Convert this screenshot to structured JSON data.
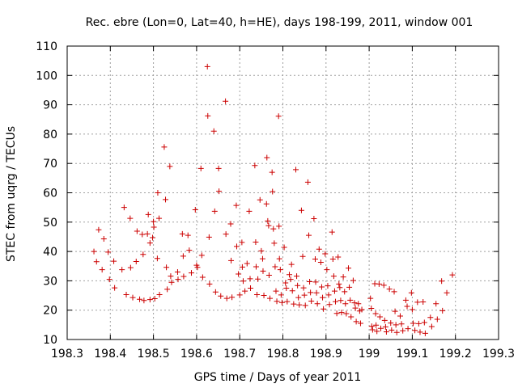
{
  "chart_data": {
    "type": "scatter",
    "title": "Rec. ebre (Lon=0, Lat=40, h=HE), days 198-199, 2011, window 001",
    "xlabel": "GPS time / Days of year 2011",
    "ylabel": "STEC from uqrg / TECUs",
    "xlim": [
      198.3,
      199.3
    ],
    "ylim": [
      10,
      110
    ],
    "xticks": [
      "198.3",
      "198.4",
      "198.5",
      "198.6",
      "198.7",
      "198.8",
      "198.9",
      "199",
      "199.1",
      "199.2",
      "199.3"
    ],
    "yticks": [
      "10",
      "20",
      "30",
      "40",
      "50",
      "60",
      "70",
      "80",
      "90",
      "100",
      "110"
    ],
    "grid": true,
    "marker": "+",
    "color": "#cc0000",
    "points": [
      [
        198.362,
        40
      ],
      [
        198.368,
        36.5
      ],
      [
        198.373,
        47.4
      ],
      [
        198.381,
        33.8
      ],
      [
        198.385,
        44.3
      ],
      [
        198.395,
        39.8
      ],
      [
        198.398,
        30.5
      ],
      [
        198.408,
        36.7
      ],
      [
        198.41,
        27.6
      ],
      [
        198.427,
        33.8
      ],
      [
        198.432,
        55
      ],
      [
        198.437,
        25.3
      ],
      [
        198.446,
        51.3
      ],
      [
        198.447,
        34.5
      ],
      [
        198.452,
        24.3
      ],
      [
        198.46,
        36.6
      ],
      [
        198.462,
        46.9
      ],
      [
        198.468,
        23.7
      ],
      [
        198.474,
        45.8
      ],
      [
        198.476,
        39
      ],
      [
        198.478,
        23.3
      ],
      [
        198.486,
        46
      ],
      [
        198.488,
        52.6
      ],
      [
        198.492,
        42.9
      ],
      [
        198.492,
        23.6
      ],
      [
        198.498,
        44.7
      ],
      [
        198.5,
        50.2
      ],
      [
        198.501,
        48.3
      ],
      [
        198.503,
        23.9
      ],
      [
        198.509,
        37.6
      ],
      [
        198.51,
        60
      ],
      [
        198.513,
        51.3
      ],
      [
        198.514,
        25.3
      ],
      [
        198.525,
        75.6
      ],
      [
        198.528,
        57.7
      ],
      [
        198.53,
        34.6
      ],
      [
        198.532,
        27.1
      ],
      [
        198.538,
        69
      ],
      [
        198.54,
        31.6
      ],
      [
        198.542,
        29.5
      ],
      [
        198.556,
        33
      ],
      [
        198.557,
        30.5
      ],
      [
        198.567,
        46
      ],
      [
        198.569,
        38.4
      ],
      [
        198.57,
        31.5
      ],
      [
        198.58,
        45.5
      ],
      [
        198.583,
        40.4
      ],
      [
        198.588,
        32.7
      ],
      [
        198.597,
        54.2
      ],
      [
        198.6,
        35.3
      ],
      [
        198.602,
        34.6
      ],
      [
        198.61,
        68.3
      ],
      [
        198.612,
        38.7
      ],
      [
        198.614,
        31.2
      ],
      [
        198.625,
        103
      ],
      [
        198.626,
        86.2
      ],
      [
        198.629,
        44.9
      ],
      [
        198.63,
        28.9
      ],
      [
        198.64,
        81
      ],
      [
        198.642,
        53.7
      ],
      [
        198.644,
        26.2
      ],
      [
        198.651,
        68.3
      ],
      [
        198.652,
        60.5
      ],
      [
        198.656,
        24.8
      ],
      [
        198.667,
        91.2
      ],
      [
        198.668,
        45.9
      ],
      [
        198.67,
        24
      ],
      [
        198.679,
        49.4
      ],
      [
        198.68,
        36.9
      ],
      [
        198.682,
        24.4
      ],
      [
        198.692,
        55.7
      ],
      [
        198.693,
        41.7
      ],
      [
        198.697,
        32.3
      ],
      [
        198.7,
        25.2
      ],
      [
        198.705,
        43.1
      ],
      [
        198.706,
        34.7
      ],
      [
        198.708,
        29.9
      ],
      [
        198.712,
        26.5
      ],
      [
        198.717,
        35.9
      ],
      [
        198.722,
        53.7
      ],
      [
        198.724,
        30.7
      ],
      [
        198.725,
        27.5
      ],
      [
        198.735,
        69.3
      ],
      [
        198.737,
        43.2
      ],
      [
        198.738,
        34.8
      ],
      [
        198.74,
        25.3
      ],
      [
        198.742,
        30.6
      ],
      [
        198.747,
        57.6
      ],
      [
        198.75,
        40.2
      ],
      [
        198.753,
        37.5
      ],
      [
        198.754,
        33.3
      ],
      [
        198.756,
        25
      ],
      [
        198.762,
        56.2
      ],
      [
        198.763,
        72
      ],
      [
        198.765,
        50.4
      ],
      [
        198.767,
        48.8
      ],
      [
        198.768,
        31.9
      ],
      [
        198.77,
        24
      ],
      [
        198.775,
        67
      ],
      [
        198.776,
        60.4
      ],
      [
        198.778,
        47.7
      ],
      [
        198.78,
        42.8
      ],
      [
        198.782,
        34.8
      ],
      [
        198.784,
        26.5
      ],
      [
        198.786,
        23
      ],
      [
        198.79,
        86.1
      ],
      [
        198.791,
        48.6
      ],
      [
        198.792,
        37.5
      ],
      [
        198.794,
        33.8
      ],
      [
        198.796,
        25.2
      ],
      [
        198.798,
        22.6
      ],
      [
        198.803,
        41.4
      ],
      [
        198.806,
        29.3
      ],
      [
        198.808,
        27.5
      ],
      [
        198.81,
        22.9
      ],
      [
        198.815,
        32.1
      ],
      [
        198.818,
        30.5
      ],
      [
        198.82,
        35.6
      ],
      [
        198.822,
        26.6
      ],
      [
        198.825,
        22.1
      ],
      [
        198.83,
        67.9
      ],
      [
        198.832,
        31.6
      ],
      [
        198.834,
        28.4
      ],
      [
        198.836,
        24.3
      ],
      [
        198.838,
        21.8
      ],
      [
        198.843,
        54
      ],
      [
        198.846,
        38.3
      ],
      [
        198.848,
        27.6
      ],
      [
        198.85,
        25.1
      ],
      [
        198.852,
        21.6
      ],
      [
        198.858,
        63.6
      ],
      [
        198.86,
        45.5
      ],
      [
        198.862,
        29.7
      ],
      [
        198.864,
        26
      ],
      [
        198.866,
        23.1
      ],
      [
        198.872,
        51.2
      ],
      [
        198.875,
        37.4
      ],
      [
        198.876,
        29.6
      ],
      [
        198.878,
        25.9
      ],
      [
        198.88,
        22.2
      ],
      [
        198.884,
        40.8
      ],
      [
        198.888,
        36.3
      ],
      [
        198.89,
        27.9
      ],
      [
        198.892,
        24.3
      ],
      [
        198.894,
        20.4
      ],
      [
        198.898,
        39.2
      ],
      [
        198.902,
        33.8
      ],
      [
        198.904,
        28.3
      ],
      [
        198.906,
        25.2
      ],
      [
        198.908,
        21.9
      ],
      [
        198.914,
        46.6
      ],
      [
        198.916,
        37.4
      ],
      [
        198.918,
        31.6
      ],
      [
        198.92,
        26.5
      ],
      [
        198.922,
        22.9
      ],
      [
        198.925,
        18.9
      ],
      [
        198.928,
        38.1
      ],
      [
        198.93,
        28.9
      ],
      [
        198.932,
        27.7
      ],
      [
        198.934,
        23.3
      ],
      [
        198.936,
        19.2
      ],
      [
        198.94,
        31.3
      ],
      [
        198.943,
        26.3
      ],
      [
        198.945,
        22.2
      ],
      [
        198.947,
        18.8
      ],
      [
        198.952,
        34.3
      ],
      [
        198.954,
        27.8
      ],
      [
        198.956,
        23.4
      ],
      [
        198.958,
        17.7
      ],
      [
        198.963,
        30.1
      ],
      [
        198.966,
        22.5
      ],
      [
        198.968,
        20.7
      ],
      [
        198.97,
        16.1
      ],
      [
        198.975,
        22.2
      ],
      [
        198.978,
        19.7
      ],
      [
        198.98,
        15.5
      ],
      [
        198.983,
        20.2
      ],
      [
        199.003,
        24
      ],
      [
        199.005,
        20.6
      ],
      [
        199.006,
        14.5
      ],
      [
        199.008,
        13.3
      ],
      [
        199.013,
        29
      ],
      [
        199.015,
        18.8
      ],
      [
        199.016,
        14.9
      ],
      [
        199.018,
        12.8
      ],
      [
        199.023,
        28.9
      ],
      [
        199.025,
        17.7
      ],
      [
        199.027,
        13.8
      ],
      [
        199.034,
        28.5
      ],
      [
        199.036,
        16.5
      ],
      [
        199.038,
        14.3
      ],
      [
        199.04,
        12.6
      ],
      [
        199.047,
        27.2
      ],
      [
        199.05,
        15.6
      ],
      [
        199.052,
        13.2
      ],
      [
        199.058,
        26.3
      ],
      [
        199.06,
        19.6
      ],
      [
        199.062,
        15
      ],
      [
        199.064,
        12.4
      ],
      [
        199.072,
        18
      ],
      [
        199.075,
        15.3
      ],
      [
        199.078,
        13
      ],
      [
        199.085,
        23.4
      ],
      [
        199.088,
        21.3
      ],
      [
        199.09,
        13.7
      ],
      [
        199.098,
        25.9
      ],
      [
        199.1,
        20.2
      ],
      [
        199.102,
        15.5
      ],
      [
        199.106,
        13.1
      ],
      [
        199.112,
        22.7
      ],
      [
        199.115,
        15.4
      ],
      [
        199.118,
        12.5
      ],
      [
        199.125,
        22.8
      ],
      [
        199.128,
        15.8
      ],
      [
        199.13,
        12.1
      ],
      [
        199.142,
        17.5
      ],
      [
        199.145,
        14.4
      ],
      [
        199.155,
        22.2
      ],
      [
        199.158,
        16.9
      ],
      [
        199.168,
        29.9
      ],
      [
        199.17,
        19.8
      ],
      [
        199.18,
        25.9
      ],
      [
        199.193,
        32
      ]
    ]
  }
}
